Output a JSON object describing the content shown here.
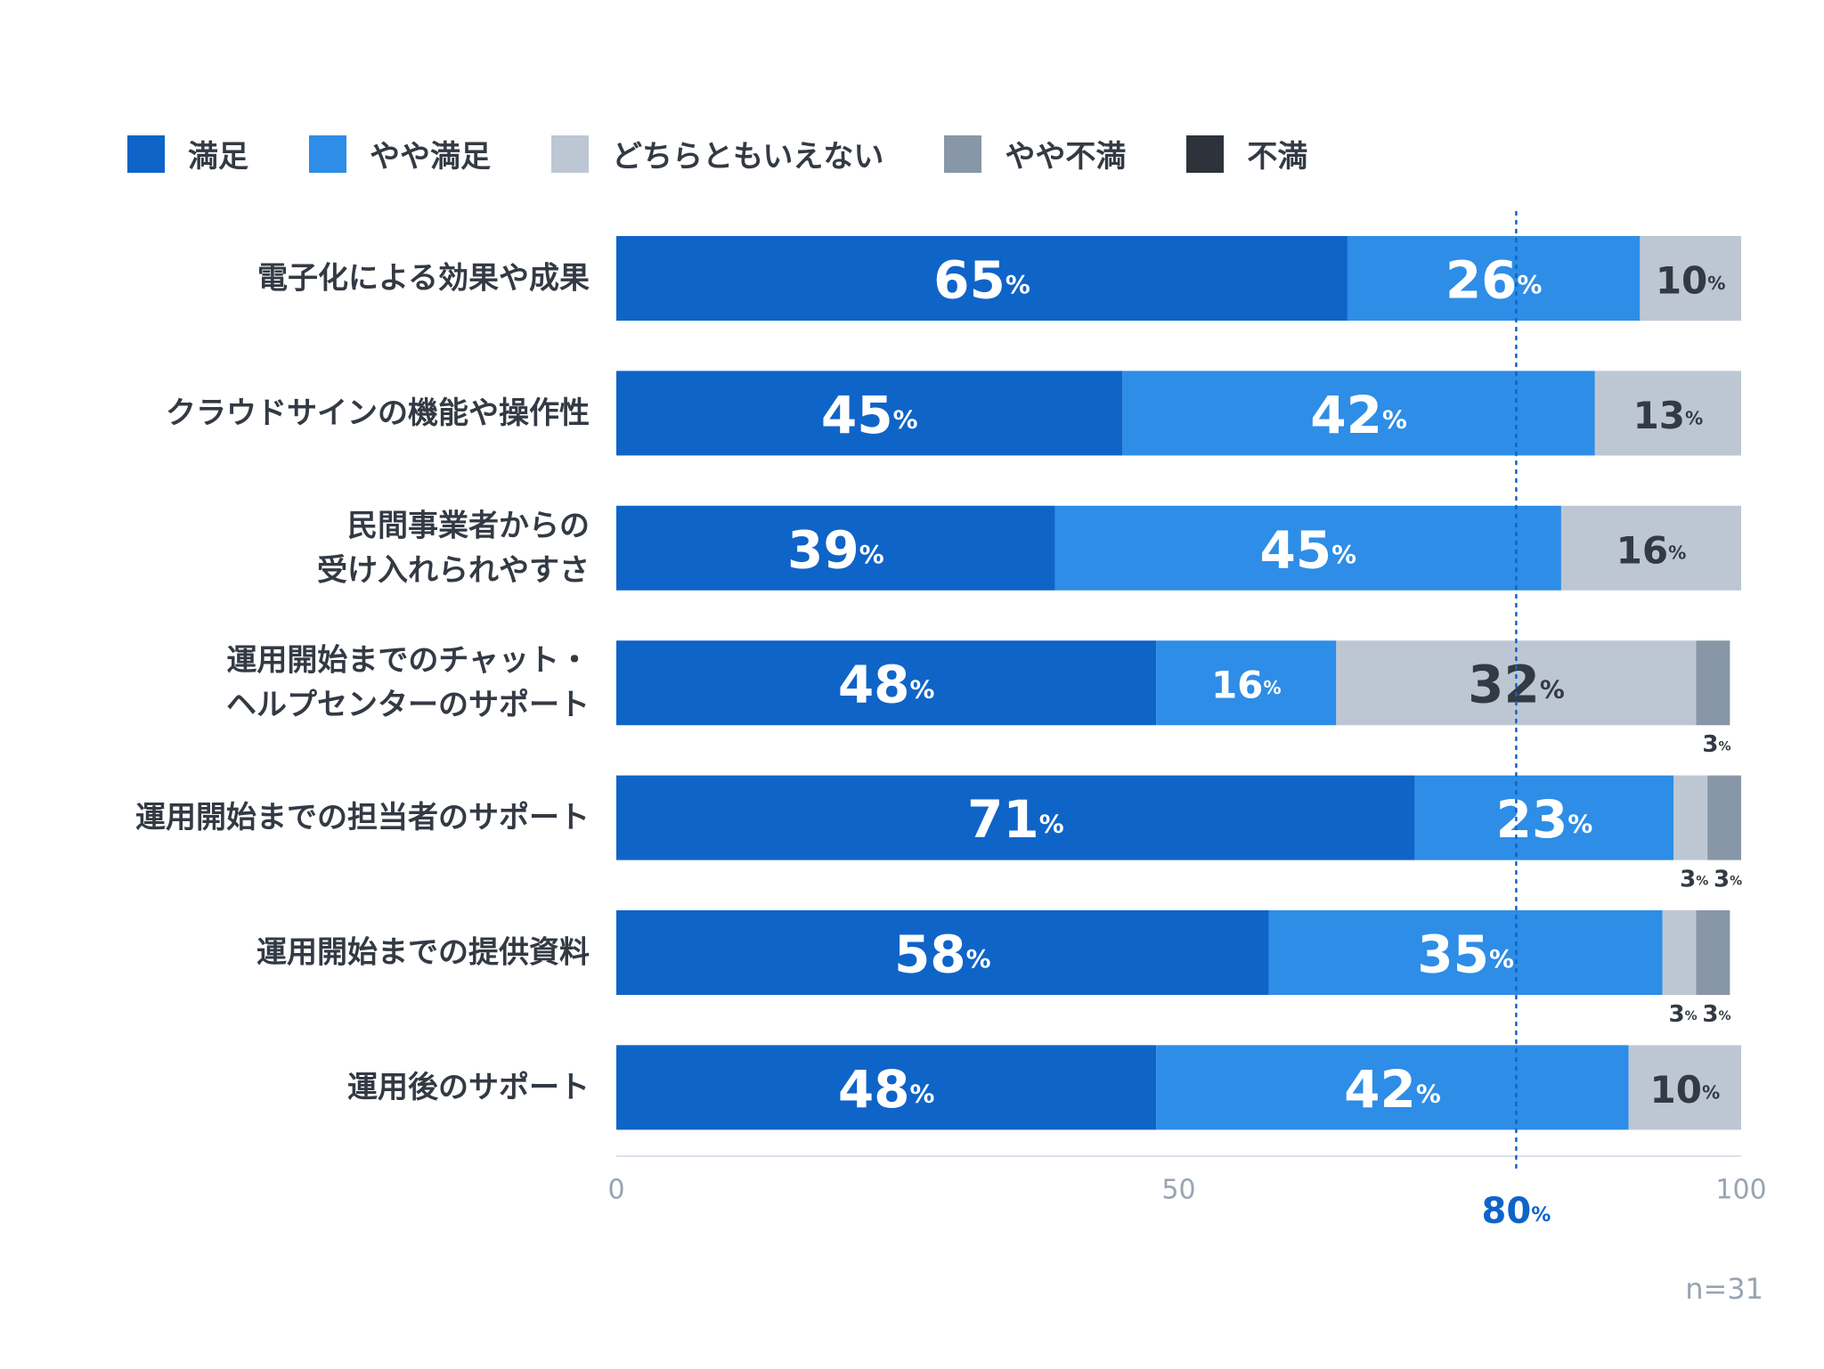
{
  "chart_data": {
    "type": "bar",
    "orientation": "horizontal",
    "stacked": true,
    "categories": [
      "電子化による効果や成果",
      "クラウドサインの機能や操作性",
      "民間事業者からの\n受け入れられやすさ",
      "運用開始までのチャット・\nヘルプセンターのサポート",
      "運用開始までの担当者のサポート",
      "運用開始までの提供資料",
      "運用後のサポート"
    ],
    "series": [
      {
        "name": "満足",
        "color": "#0f64c8",
        "values": [
          65,
          45,
          39,
          48,
          71,
          58,
          48
        ]
      },
      {
        "name": "やや満足",
        "color": "#2e8de6",
        "values": [
          26,
          42,
          45,
          16,
          23,
          35,
          42
        ]
      },
      {
        "name": "どちらともいえない",
        "color": "#bdc7d4",
        "values": [
          10,
          13,
          16,
          32,
          3,
          3,
          10
        ]
      },
      {
        "name": "やや不満",
        "color": "#8897a8",
        "values": [
          0,
          0,
          0,
          3,
          3,
          3,
          0
        ]
      },
      {
        "name": "不満",
        "color": "#2e333b",
        "values": [
          0,
          0,
          0,
          0,
          0,
          0,
          0
        ]
      }
    ],
    "xlim": [
      0,
      100
    ],
    "xticks": [
      0,
      50,
      100
    ],
    "reference_line": {
      "value": 80,
      "label": "80",
      "color": "#0f64c8"
    },
    "unit": "%",
    "legend": "top",
    "grid": false,
    "note": "n=31"
  }
}
